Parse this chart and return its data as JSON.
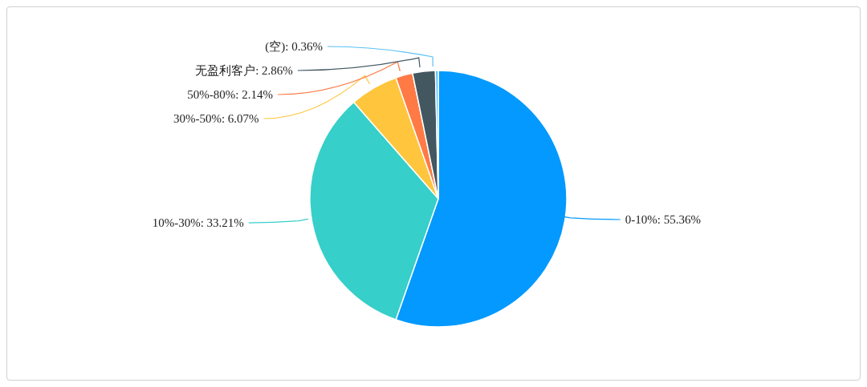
{
  "chart_data": {
    "type": "pie",
    "categories": [
      "0-10%",
      "10%-30%",
      "30%-50%",
      "50%-80%",
      "无盈利客户",
      "(空)"
    ],
    "values": [
      55.36,
      33.21,
      6.07,
      2.14,
      2.86,
      0.36
    ],
    "colors": [
      "#0399fe",
      "#36cfc9",
      "#ffc53d",
      "#ff7a45",
      "#435761",
      "#5cc0f5"
    ],
    "value_labels": [
      "55.36%",
      "33.21%",
      "6.07%",
      "2.14%",
      "2.86%",
      "0.36%"
    ],
    "legend": false
  }
}
